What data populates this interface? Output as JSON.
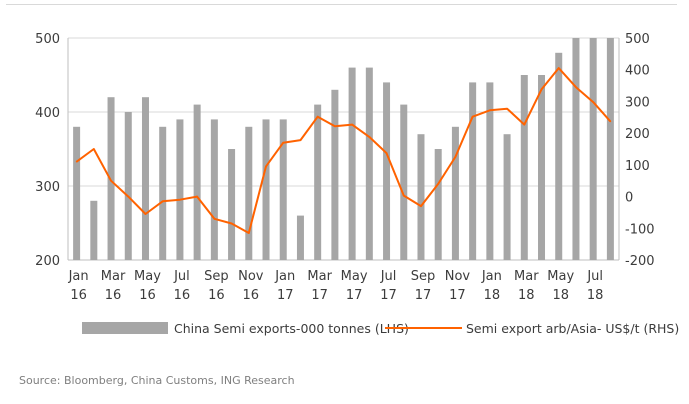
{
  "chart_data": {
    "type": "bar+line",
    "categories": [
      "Jan 16",
      "Feb 16",
      "Mar 16",
      "Apr 16",
      "May 16",
      "Jun 16",
      "Jul 16",
      "Aug 16",
      "Sep 16",
      "Oct 16",
      "Nov 16",
      "Dec 16",
      "Jan 17",
      "Feb 17",
      "Mar 17",
      "Apr 17",
      "May 17",
      "Jun 17",
      "Jul 17",
      "Aug 17",
      "Sep 17",
      "Oct 17",
      "Nov 17",
      "Dec 17",
      "Jan 18",
      "Feb 18",
      "Mar 18",
      "Apr 18",
      "May 18",
      "Jun 18",
      "Jul 18",
      "Aug 18"
    ],
    "x_tick_labels": [
      {
        "month": "Jan",
        "year": "16",
        "index": 0
      },
      {
        "month": "Mar",
        "year": "16",
        "index": 2
      },
      {
        "month": "May",
        "year": "16",
        "index": 4
      },
      {
        "month": "Jul",
        "year": "16",
        "index": 6
      },
      {
        "month": "Sep",
        "year": "16",
        "index": 8
      },
      {
        "month": "Nov",
        "year": "16",
        "index": 10
      },
      {
        "month": "Jan",
        "year": "17",
        "index": 12
      },
      {
        "month": "Mar",
        "year": "17",
        "index": 14
      },
      {
        "month": "May",
        "year": "17",
        "index": 16
      },
      {
        "month": "Jul",
        "year": "17",
        "index": 18
      },
      {
        "month": "Sep",
        "year": "17",
        "index": 20
      },
      {
        "month": "Nov",
        "year": "17",
        "index": 22
      },
      {
        "month": "Jan",
        "year": "18",
        "index": 24
      },
      {
        "month": "Mar",
        "year": "18",
        "index": 26
      },
      {
        "month": "May",
        "year": "18",
        "index": 28
      },
      {
        "month": "Jul",
        "year": "18",
        "index": 30
      }
    ],
    "series": [
      {
        "name": "China Semi exports-000 tonnes (LHS)",
        "type": "bar",
        "axis": "left",
        "color": "#a6a6a6",
        "values": [
          380,
          280,
          420,
          400,
          420,
          380,
          390,
          410,
          390,
          350,
          380,
          390,
          390,
          260,
          410,
          430,
          460,
          460,
          440,
          410,
          370,
          350,
          380,
          440,
          440,
          370,
          450,
          450,
          480,
          500,
          500,
          500
        ]
      },
      {
        "name": "Semi export arb/Asia- US$/t (RHS)",
        "type": "line",
        "axis": "right",
        "color": "#ff6200",
        "values": [
          110,
          150,
          50,
          0,
          -55,
          -15,
          -10,
          0,
          -70,
          -85,
          -115,
          95,
          170,
          178,
          252,
          222,
          227,
          188,
          137,
          3,
          -30,
          40,
          125,
          252,
          272,
          277,
          227,
          338,
          405,
          345,
          298,
          237
        ]
      }
    ],
    "y_left": {
      "min": 200,
      "max": 500,
      "ticks": [
        "500",
        "400",
        "300",
        "200"
      ]
    },
    "y_right": {
      "min": -200,
      "max": 500,
      "ticks": [
        "500",
        "400",
        "300",
        "200",
        "100",
        "0",
        "-100",
        "-200"
      ]
    },
    "legend_position": "bottom",
    "grid": "horizontal"
  },
  "source": "Source: Bloomberg, China Customs, ING Research"
}
